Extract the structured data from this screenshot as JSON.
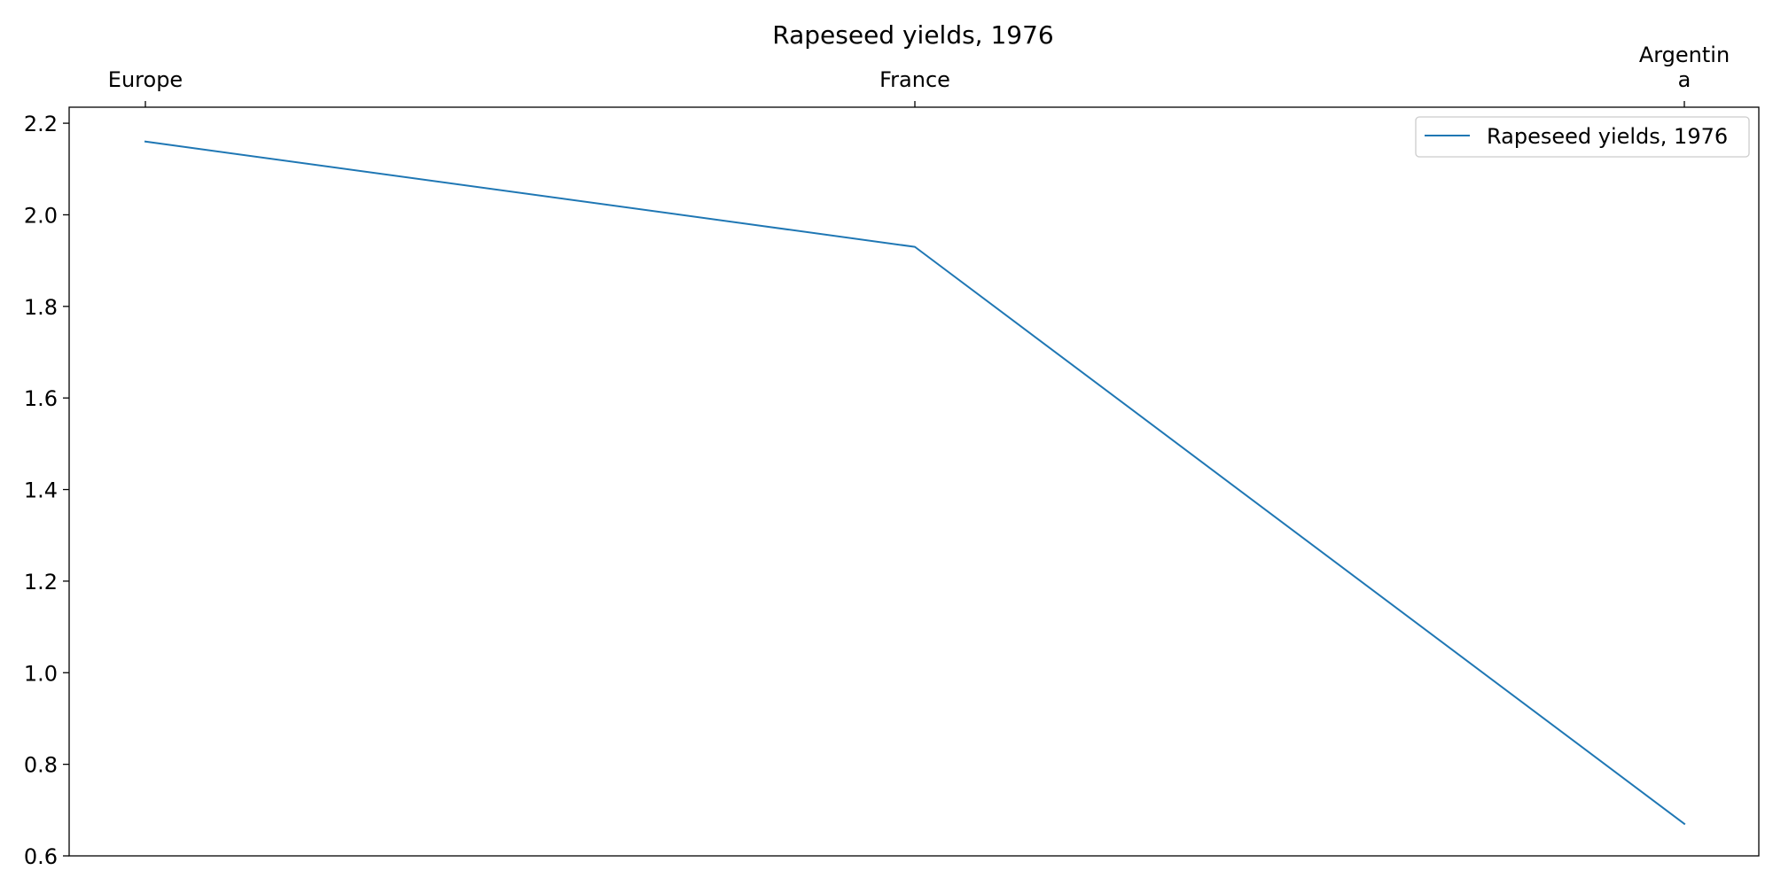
{
  "chart_data": {
    "type": "line",
    "title": "Rapeseed yields, 1976",
    "categories": [
      "Europe",
      "France",
      "Argentina"
    ],
    "category_tick_labels": [
      [
        "Europe"
      ],
      [
        "France"
      ],
      [
        "Argentin",
        "a"
      ]
    ],
    "x_axis_position": "top",
    "series": [
      {
        "name": "Rapeseed yields, 1976",
        "values": [
          2.16,
          1.93,
          0.67
        ],
        "color": "#1f77b4"
      }
    ],
    "y_ticks": [
      "0.6",
      "0.8",
      "1.0",
      "1.2",
      "1.4",
      "1.6",
      "1.8",
      "2.0",
      "2.2"
    ],
    "ylim": [
      0.6,
      2.235
    ],
    "legend_position": "top-right",
    "grid": false
  }
}
